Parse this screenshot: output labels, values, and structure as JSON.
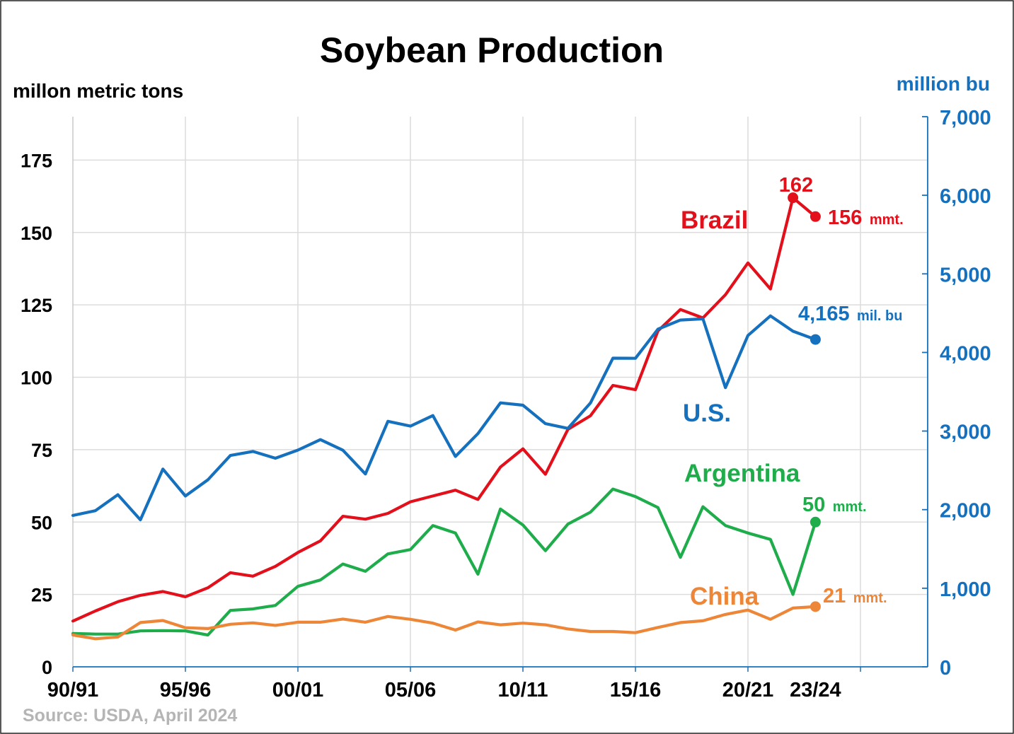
{
  "chart_data": {
    "type": "line",
    "title": "Soybean Production",
    "ylabel_left": "millon metric tons",
    "ylabel_right": "million bu",
    "ylim": [
      0,
      190
    ],
    "ylim_right": [
      0,
      7000
    ],
    "grid": true,
    "yticks_left": [
      "0",
      "25",
      "50",
      "75",
      "100",
      "125",
      "150",
      "175"
    ],
    "yticks_right": [
      "0",
      "1,000",
      "2,000",
      "3,000",
      "4,000",
      "5,000",
      "6,000",
      "7,000"
    ],
    "xticks": [
      "90/91",
      "95/96",
      "00/01",
      "05/06",
      "10/11",
      "15/16",
      "20/21",
      "23/24"
    ],
    "x": [
      1990,
      1991,
      1992,
      1993,
      1994,
      1995,
      1996,
      1997,
      1998,
      1999,
      2000,
      2001,
      2002,
      2003,
      2004,
      2005,
      2006,
      2007,
      2008,
      2009,
      2010,
      2011,
      2012,
      2013,
      2014,
      2015,
      2016,
      2017,
      2018,
      2019,
      2020,
      2021,
      2022,
      2023
    ],
    "series": [
      {
        "name": "Brazil",
        "color": "#e3101b",
        "values": [
          15.8,
          19.3,
          22.5,
          24.7,
          26.0,
          24.2,
          27.3,
          32.5,
          31.3,
          34.7,
          39.5,
          43.5,
          52.0,
          51.0,
          53.0,
          57.0,
          59.0,
          61.0,
          57.8,
          69.0,
          75.3,
          66.5,
          82.0,
          86.7,
          97.2,
          95.7,
          116.0,
          123.4,
          120.5,
          128.5,
          139.5,
          130.5,
          162.0,
          155.5
        ]
      },
      {
        "name": "U.S.",
        "color": "#1570be",
        "unit": "million bu",
        "values": [
          1926,
          1987,
          2190,
          1871,
          2517,
          2174,
          2380,
          2689,
          2741,
          2654,
          2758,
          2891,
          2756,
          2454,
          3124,
          3063,
          3197,
          2677,
          2967,
          3359,
          3329,
          3094,
          3034,
          3357,
          3927,
          3926,
          4296,
          4412,
          4428,
          3552,
          4216,
          4465,
          4270,
          4165
        ]
      },
      {
        "name": "Argentina",
        "color": "#1fad4c",
        "values": [
          11.5,
          11.3,
          11.3,
          12.4,
          12.5,
          12.4,
          11.0,
          19.5,
          20.0,
          21.2,
          27.8,
          30.0,
          35.5,
          33.0,
          39.0,
          40.5,
          48.8,
          46.2,
          32.0,
          54.5,
          49.0,
          40.1,
          49.3,
          53.4,
          61.4,
          58.8,
          55.0,
          37.8,
          55.3,
          48.8,
          46.2,
          44.0,
          25.0,
          50.0
        ]
      },
      {
        "name": "China",
        "color": "#ee8637",
        "values": [
          11.0,
          9.7,
          10.3,
          15.3,
          16.0,
          13.5,
          13.2,
          14.7,
          15.2,
          14.3,
          15.4,
          15.4,
          16.5,
          15.4,
          17.4,
          16.4,
          15.1,
          12.7,
          15.5,
          14.5,
          15.1,
          14.5,
          13.1,
          12.2,
          12.2,
          11.8,
          13.6,
          15.3,
          15.9,
          18.1,
          19.6,
          16.4,
          20.3,
          20.8
        ]
      }
    ],
    "annotations": {
      "brazil_peak": "162",
      "brazil_last_value": "156",
      "brazil_last_unit": "mmt.",
      "us_last_value": "4,165",
      "us_last_unit": "mil. bu",
      "argentina_last_value": "50",
      "argentina_last_unit": "mmt.",
      "china_last_value": "21",
      "china_last_unit": "mmt."
    },
    "source": "Source: USDA, April 2024"
  }
}
